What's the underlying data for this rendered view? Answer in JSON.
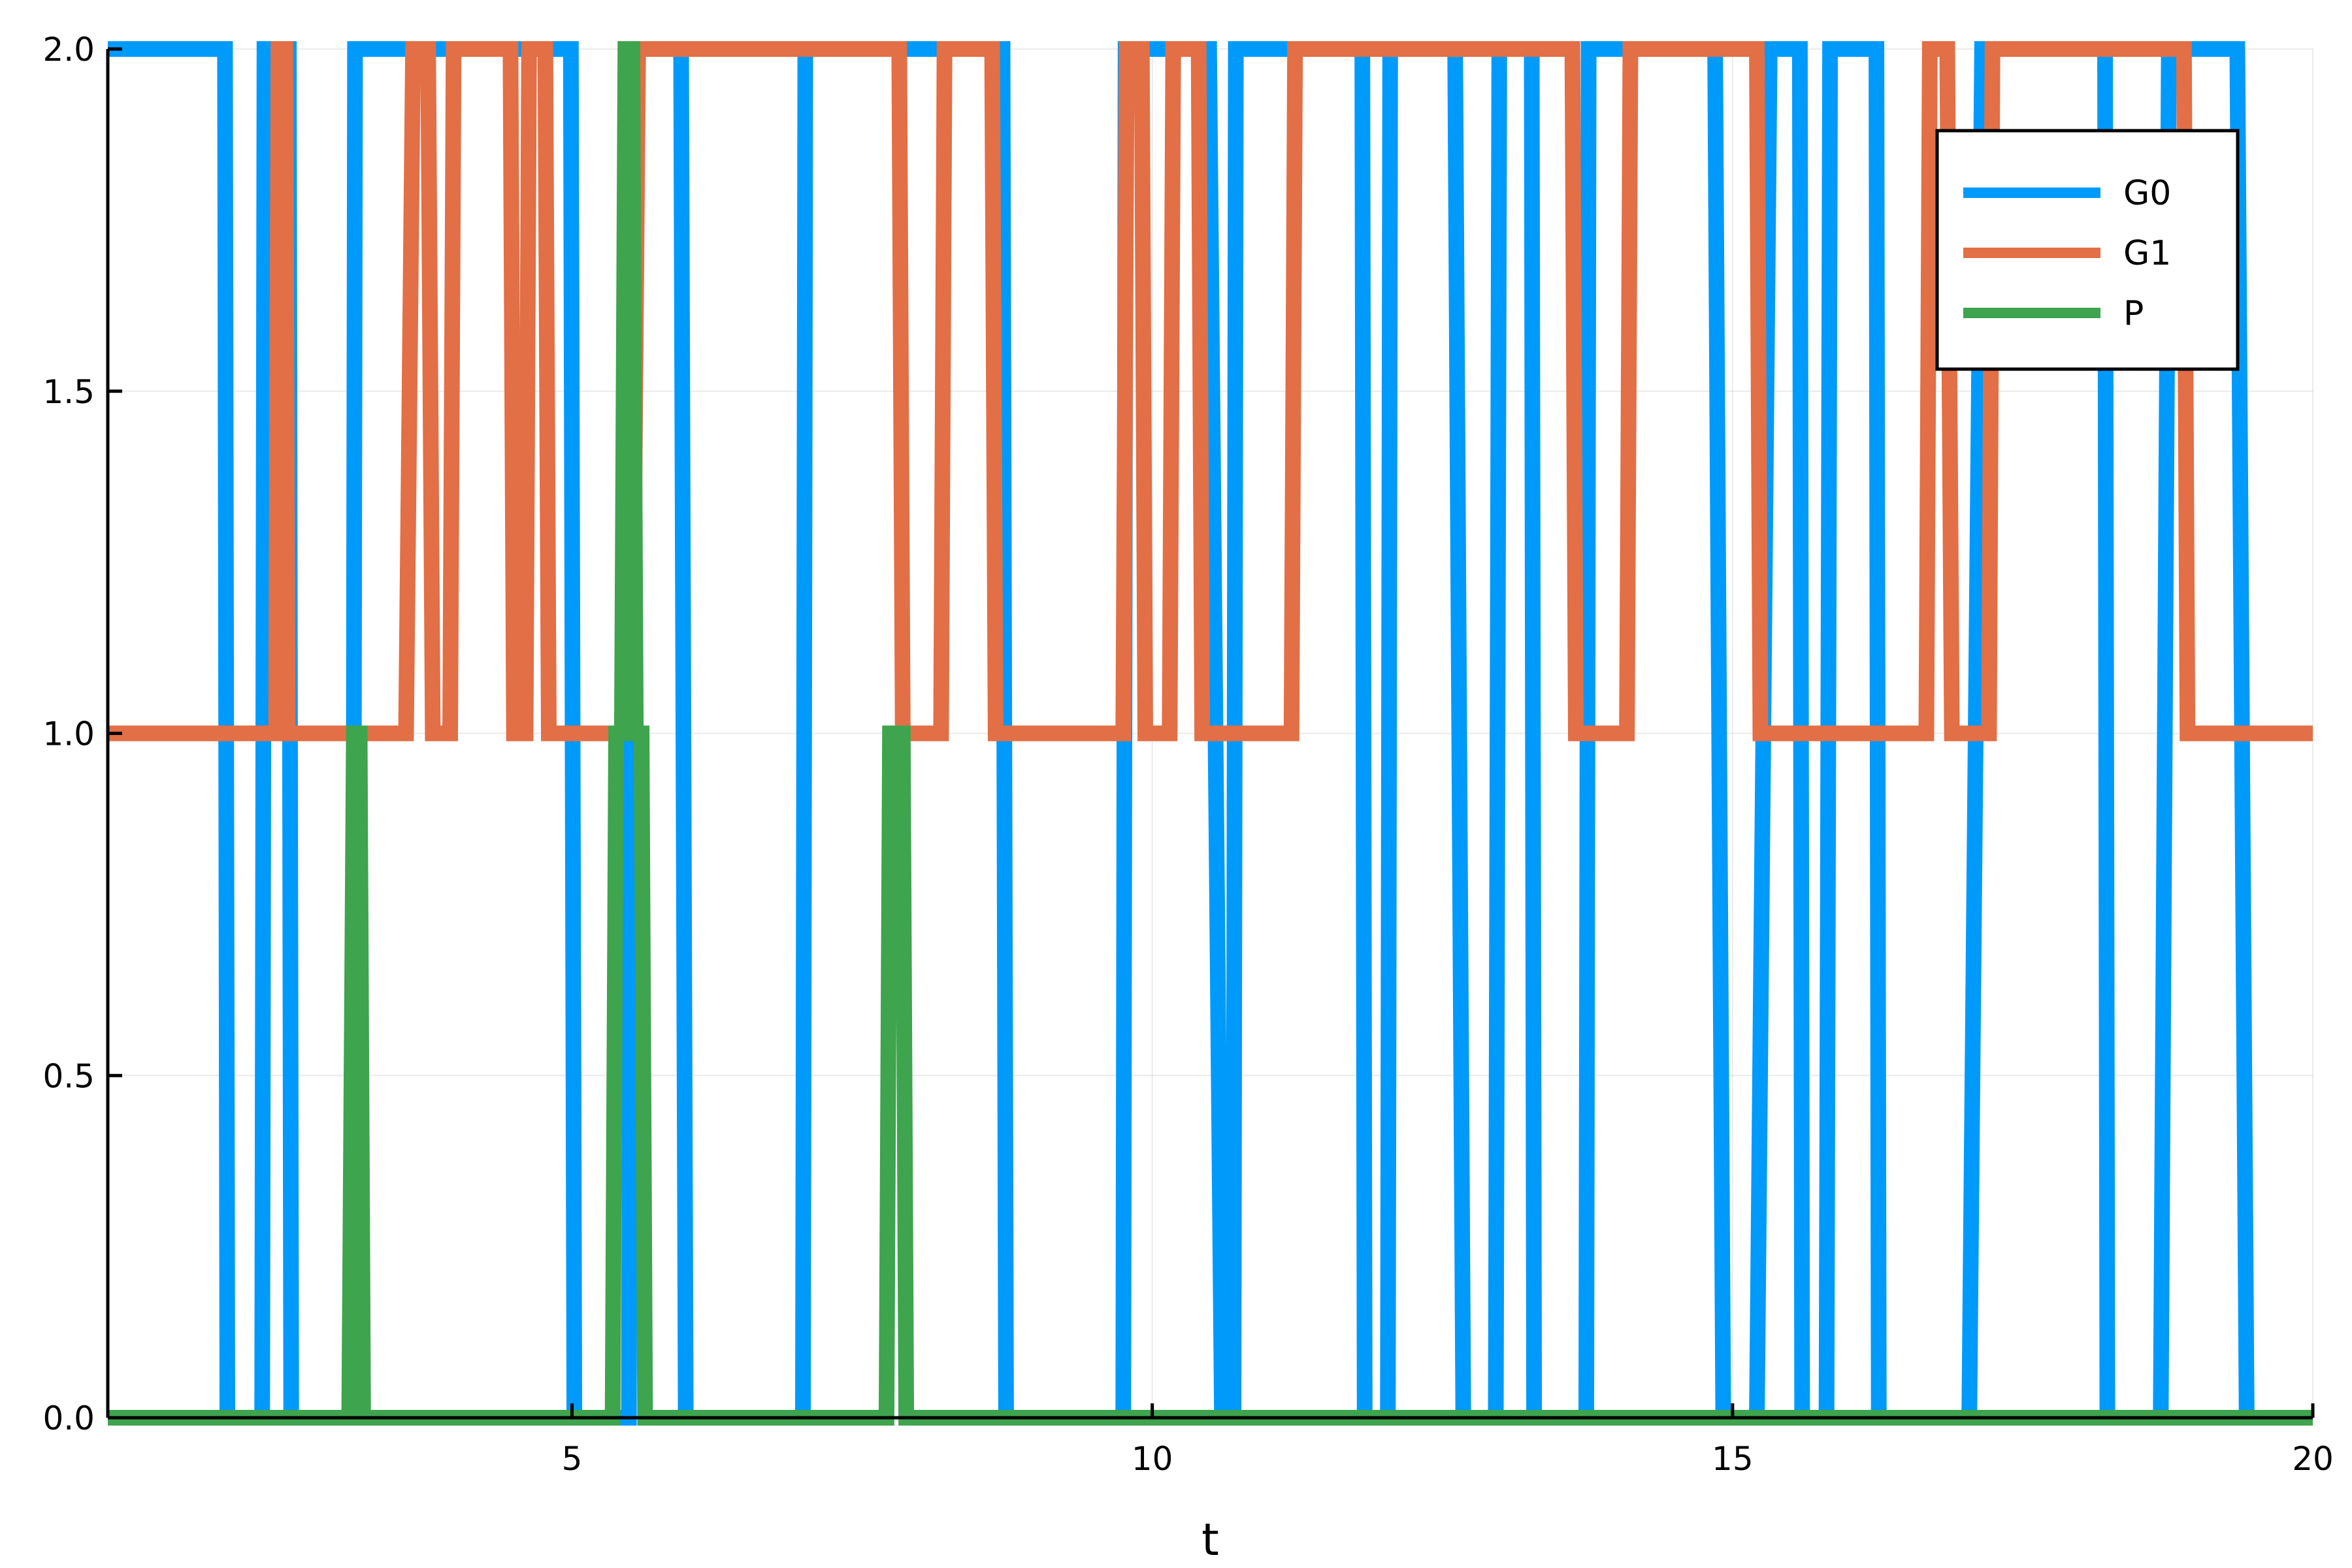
{
  "chart_data": {
    "type": "line",
    "xlabel": "t",
    "ylabel": "",
    "xlim": [
      1,
      20
    ],
    "ylim": [
      0,
      2
    ],
    "x_ticks": [
      5,
      10,
      15,
      20
    ],
    "y_ticks": [
      0.0,
      0.5,
      1.0,
      1.5,
      2.0
    ],
    "x_tick_labels": [
      "5",
      "10",
      "15",
      "20"
    ],
    "y_tick_labels": [
      "0.0",
      "0.5",
      "1.0",
      "1.5",
      "2.0"
    ],
    "grid": true,
    "legend_position": "top-right",
    "series": [
      {
        "name": "G0",
        "color": "#009AFA",
        "x": [
          1.0,
          2.01,
          2.03,
          2.33,
          2.35,
          2.56,
          2.58,
          3.11,
          3.13,
          4.99,
          5.02,
          5.49,
          5.52,
          5.94,
          5.98,
          6.99,
          7.01,
          8.71,
          8.74,
          9.75,
          9.77,
          10.49,
          10.6,
          10.7,
          10.72,
          11.81,
          11.83,
          12.03,
          12.05,
          12.61,
          12.68,
          12.96,
          12.99,
          13.27,
          13.29,
          13.74,
          13.76,
          14.85,
          14.92,
          15.21,
          15.32,
          15.58,
          15.6,
          15.81,
          15.84,
          16.24,
          16.26,
          17.04,
          17.15,
          18.21,
          18.23,
          18.69,
          18.76,
          19.35,
          19.43,
          20.0
        ],
        "y": [
          2,
          2,
          0,
          0,
          2,
          2,
          0,
          0,
          2,
          2,
          0,
          0,
          2,
          2,
          0,
          0,
          2,
          2,
          0,
          0,
          2,
          2,
          0,
          0,
          2,
          2,
          0,
          0,
          2,
          2,
          0,
          0,
          2,
          2,
          0,
          0,
          2,
          2,
          0,
          0,
          2,
          2,
          0,
          0,
          2,
          2,
          0,
          0,
          2,
          2,
          0,
          0,
          2,
          2,
          0,
          0
        ]
      },
      {
        "name": "G1",
        "color": "#E26F46",
        "x": [
          1.0,
          2.45,
          2.47,
          2.53,
          2.55,
          3.57,
          3.63,
          3.76,
          3.8,
          3.95,
          3.98,
          4.47,
          4.5,
          4.6,
          4.63,
          4.77,
          4.8,
          5.52,
          5.57,
          7.82,
          7.85,
          8.18,
          8.21,
          8.62,
          8.65,
          9.75,
          9.78,
          9.91,
          9.94,
          10.15,
          10.18,
          10.4,
          10.43,
          11.2,
          11.23,
          13.62,
          13.65,
          14.09,
          14.12,
          15.21,
          15.24,
          16.67,
          16.7,
          16.85,
          16.89,
          17.21,
          17.24,
          18.89,
          18.92,
          20.0
        ],
        "y": [
          1,
          1,
          2,
          2,
          1,
          1,
          2,
          2,
          1,
          1,
          2,
          2,
          1,
          1,
          2,
          2,
          1,
          1,
          2,
          2,
          1,
          1,
          2,
          2,
          1,
          1,
          2,
          2,
          1,
          1,
          2,
          2,
          1,
          1,
          2,
          2,
          1,
          1,
          2,
          2,
          1,
          1,
          2,
          2,
          1,
          1,
          2,
          2,
          1,
          1
        ]
      },
      {
        "name": "P",
        "color": "#3EA44E",
        "x": [
          1.0,
          3.08,
          3.12,
          3.17,
          3.2,
          5.35,
          5.38,
          5.43,
          5.46,
          5.52,
          5.55,
          5.6,
          5.63,
          7.71,
          7.74,
          7.85,
          7.88,
          20.0
        ],
        "y": [
          0,
          0,
          1,
          1,
          0,
          0,
          1,
          1,
          2,
          2,
          1,
          1,
          0,
          0,
          1,
          1,
          0,
          0
        ]
      }
    ]
  }
}
